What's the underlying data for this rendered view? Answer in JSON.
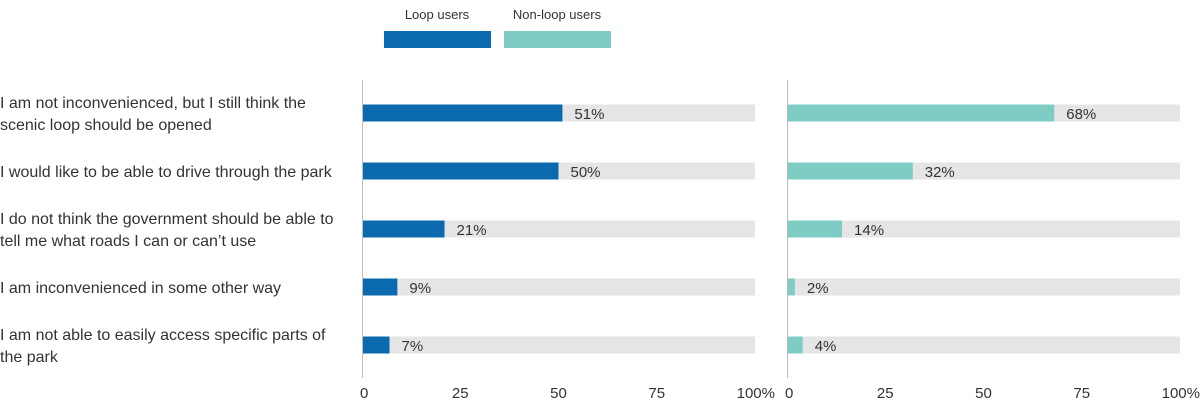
{
  "chart_data": {
    "type": "bar",
    "orientation": "horizontal",
    "layout": "two-panel",
    "legend_placement": "top",
    "grid": false,
    "xlim": [
      0,
      100
    ],
    "x_ticks": [
      "0",
      "25",
      "50",
      "75",
      "100%"
    ],
    "categories": [
      [
        "I am not inconvenienced, but I still think the",
        "scenic loop should be opened"
      ],
      [
        "I would like to be able to drive through the park"
      ],
      [
        "I do not think the government should be able to",
        "tell me what roads I can or can’t use"
      ],
      [
        "I am inconvenienced in some other way"
      ],
      [
        "I am not able to easily access specific parts of",
        "the park"
      ]
    ],
    "series": [
      {
        "name": "Loop users",
        "color": "#0B69AE",
        "values": [
          51,
          50,
          21,
          9,
          7
        ],
        "labels": [
          "51%",
          "50%",
          "21%",
          "9%",
          "7%"
        ]
      },
      {
        "name": "Non-loop users",
        "color": "#7ECCC4",
        "values": [
          68,
          32,
          14,
          2,
          4
        ],
        "labels": [
          "68%",
          "32%",
          "14%",
          "2%",
          "4%"
        ]
      }
    ],
    "track_color": "#E5E5E5"
  }
}
